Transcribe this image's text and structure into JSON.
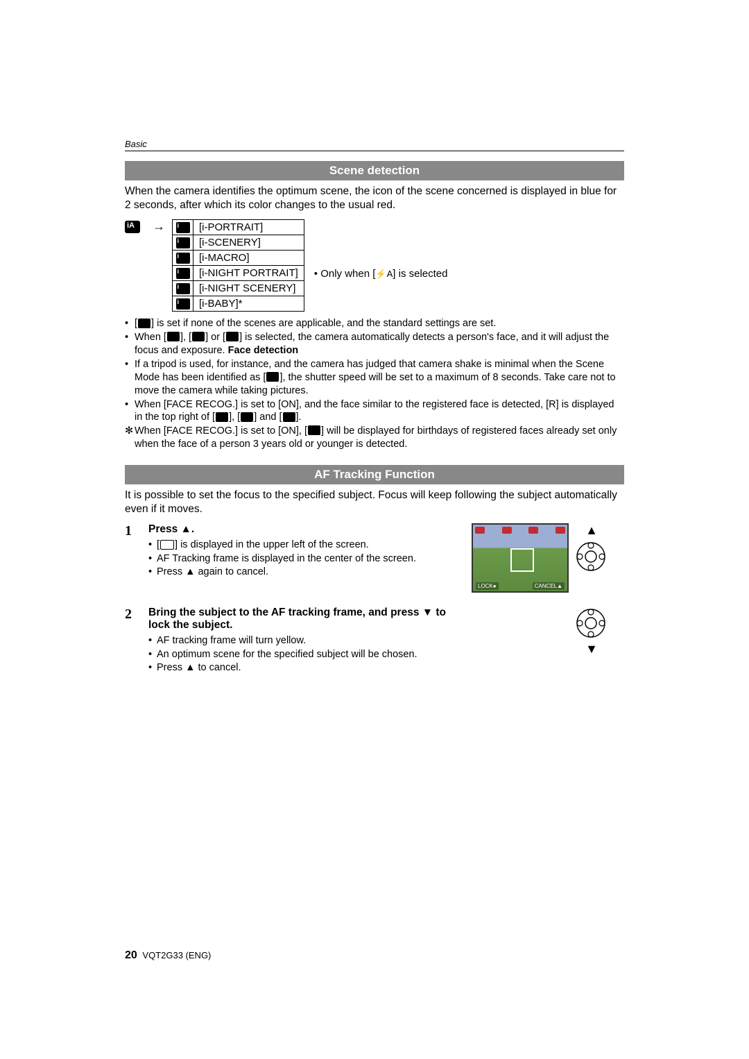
{
  "header": {
    "label": "Basic"
  },
  "section1": {
    "title": "Scene detection",
    "intro": "When the camera identifies the optimum scene, the icon of the scene concerned is displayed in blue for 2 seconds, after which its color changes to the usual red.",
    "scenes": [
      {
        "label": "[i-PORTRAIT]",
        "glyph": "i👤"
      },
      {
        "label": "[i-SCENERY]",
        "glyph": "i⛰"
      },
      {
        "label": "[i-MACRO]",
        "glyph": "i❀"
      },
      {
        "label": "[i-NIGHT PORTRAIT]",
        "glyph": "i★"
      },
      {
        "label": "[i-NIGHT SCENERY]",
        "glyph": "i☾"
      },
      {
        "label": "[i-BABY]*",
        "glyph": "i☻"
      }
    ],
    "side_note_prefix": "• Only when [",
    "side_note_suffix": "] is selected",
    "flash_text": "⚡A",
    "bullets": [
      {
        "pre": "[",
        "icon": true,
        "post": "] is set if none of the scenes are applicable, and the standard settings are set."
      },
      {
        "text_parts": [
          "When [",
          "], [",
          "] or [",
          "] is selected, the camera automatically detects a person's face, and it will adjust the focus and exposure. "
        ],
        "bold_tail": "Face detection",
        "icons": 3
      },
      {
        "text_parts": [
          "If a tripod is used, for instance, and the camera has judged that camera shake is minimal when the Scene Mode has been identified as [",
          "], the shutter speed will be set to a maximum of 8 seconds. Take care not to move the camera while taking pictures."
        ],
        "icons": 1
      },
      {
        "text_parts": [
          "When [FACE RECOG.] is set to [ON], and the face similar to the registered face is detected, [R] is displayed in the top right of [",
          "], [",
          "] and [",
          "]."
        ],
        "icons": 3
      },
      {
        "star": true,
        "text_parts": [
          "When [FACE RECOG.] is set to [ON], [",
          "] will be displayed for birthdays of registered faces already set only when the face of a person 3 years old or younger is detected."
        ],
        "icons": 1
      }
    ]
  },
  "section2": {
    "title": "AF Tracking Function",
    "intro": "It is possible to set the focus to the specified subject. Focus will keep following the subject automatically even if it moves.",
    "steps": [
      {
        "num": "1",
        "heading": "Press ▲.",
        "subs": [
          "[ 　 ] is displayed in the upper left of the screen.",
          "AF Tracking frame is displayed in the center of the screen.",
          "Press ▲ again to cancel."
        ],
        "lcd": {
          "lock": "LOCK●",
          "cancel": "CANCEL▲"
        },
        "dpad_dir": "up"
      },
      {
        "num": "2",
        "heading": "Bring the subject to the AF tracking frame, and press ▼ to lock the subject.",
        "subs": [
          "AF tracking frame will turn yellow.",
          "An optimum scene for the specified subject will be chosen.",
          "Press ▲ to cancel."
        ],
        "dpad_dir": "down"
      }
    ]
  },
  "footer": {
    "page": "20",
    "doc": "VQT2G33 (ENG)"
  },
  "colors": {
    "bar_bg": "#888888",
    "bar_text": "#ffffff",
    "text": "#000000"
  }
}
